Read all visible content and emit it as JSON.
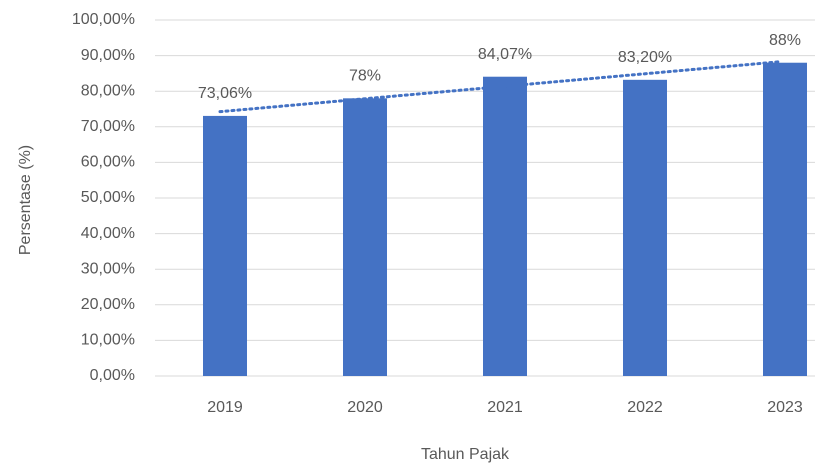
{
  "chart_data": {
    "type": "bar",
    "categories": [
      "2019",
      "2020",
      "2021",
      "2022",
      "2023"
    ],
    "values": [
      73.06,
      78,
      84.07,
      83.2,
      88
    ],
    "value_labels": [
      "73,06%",
      "78%",
      "84,07%",
      "83,20%",
      "88%"
    ],
    "color": "#4472c4",
    "x_label": "Tahun Pajak",
    "y_label": "Persentase (%)",
    "ylim": [
      0,
      100
    ],
    "yticks": [
      {
        "value": 0,
        "label": "0,00%"
      },
      {
        "value": 10,
        "label": "10,00%"
      },
      {
        "value": 20,
        "label": "20,00%"
      },
      {
        "value": 30,
        "label": "30,00%"
      },
      {
        "value": 40,
        "label": "40,00%"
      },
      {
        "value": 50,
        "label": "50,00%"
      },
      {
        "value": 60,
        "label": "60,00%"
      },
      {
        "value": 70,
        "label": "70,00%"
      },
      {
        "value": 80,
        "label": "80,00%"
      },
      {
        "value": 90,
        "label": "90,00%"
      },
      {
        "value": 100,
        "label": "100,00%"
      }
    ],
    "grid": true,
    "trendline": true
  }
}
